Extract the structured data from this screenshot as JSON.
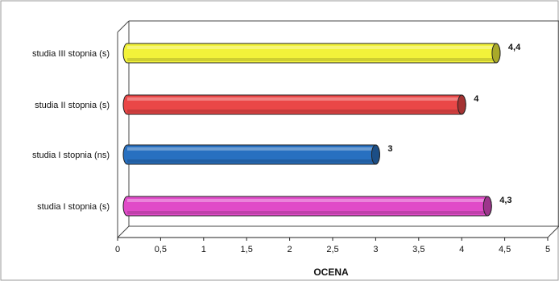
{
  "chart_data": {
    "type": "bar",
    "orientation": "horizontal",
    "style": "3d-cylinder",
    "categories": [
      "studia III stopnia (s)",
      "studia II stopnia (s)",
      "studia I stopnia (ns)",
      "studia I stopnia (s)"
    ],
    "values": [
      4.4,
      4,
      3,
      4.3
    ],
    "value_labels": [
      "4,4",
      "4",
      "3",
      "4,3"
    ],
    "colors": [
      "#f2f23a",
      "#ea4747",
      "#2870c0",
      "#e04bc8"
    ],
    "xlabel": "OCENA",
    "xlim": [
      0,
      5
    ],
    "xticks": [
      0,
      0.5,
      1,
      1.5,
      2,
      2.5,
      3,
      3.5,
      4,
      4.5,
      5
    ],
    "xtick_labels": [
      "0",
      "0,5",
      "1",
      "1,5",
      "2",
      "2,5",
      "3",
      "3,5",
      "4",
      "4,5",
      "5"
    ],
    "grid": false,
    "legend": "none"
  }
}
